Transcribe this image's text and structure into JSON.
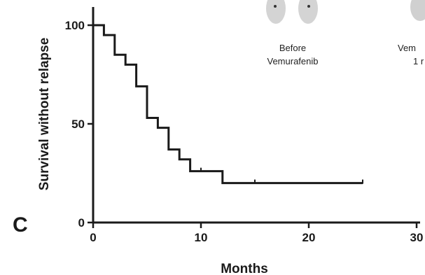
{
  "panel_label": "C",
  "inset": {
    "caption_before_line1": "Before",
    "caption_before_line2": "Vemurafenib",
    "caption_after_line1": "Vem",
    "caption_after_line2": "1 r"
  },
  "chart_data": {
    "type": "line",
    "title": "",
    "xlabel": "Months",
    "ylabel": "Survival without relapse",
    "xlim": [
      0,
      30
    ],
    "ylim": [
      0,
      100
    ],
    "x_ticks": [
      0,
      10,
      20,
      30
    ],
    "x_tick_labels": [
      "0",
      "10",
      "20",
      "30"
    ],
    "y_ticks": [
      0,
      50,
      100
    ],
    "y_tick_labels": [
      "0",
      "50",
      "100"
    ],
    "grid": false,
    "series": [
      {
        "color": "#1a1a1a",
        "step": true,
        "x": [
          0,
          1,
          2,
          3,
          4,
          5,
          6,
          7,
          8,
          9,
          12,
          25
        ],
        "y": [
          100,
          95,
          85,
          80,
          69,
          53,
          48,
          37,
          32,
          26,
          20,
          20
        ],
        "censored": [
          {
            "x": 10,
            "y": 26
          },
          {
            "x": 15,
            "y": 20
          },
          {
            "x": 25,
            "y": 20
          }
        ]
      }
    ]
  }
}
